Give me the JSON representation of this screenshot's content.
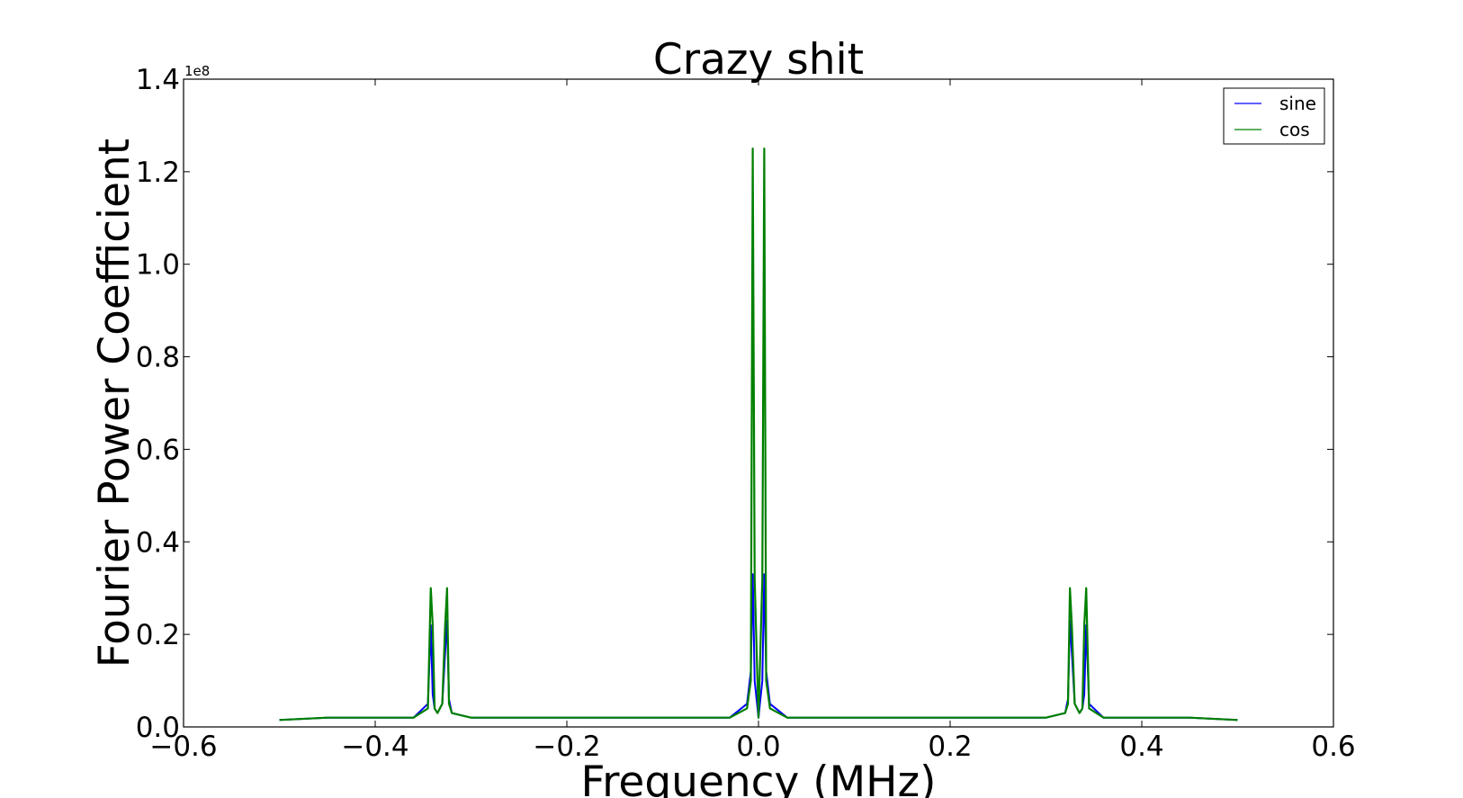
{
  "chart_data": {
    "type": "line",
    "title": "Crazy shit",
    "xlabel": "Frequency (MHz)",
    "ylabel": "Fourier Power Coefficient",
    "y_multiplier": "1e8",
    "xlim": [
      -0.6,
      0.6
    ],
    "ylim": [
      0,
      1.4
    ],
    "xticks": [
      -0.6,
      -0.4,
      -0.2,
      0.0,
      0.2,
      0.4,
      0.6
    ],
    "xtick_labels": [
      "−0.6",
      "−0.4",
      "−0.2",
      "0.0",
      "0.2",
      "0.4",
      "0.6"
    ],
    "yticks": [
      0.0,
      0.2,
      0.4,
      0.6,
      0.8,
      1.0,
      1.2,
      1.4
    ],
    "ytick_labels": [
      "0.0",
      "0.2",
      "0.4",
      "0.6",
      "0.8",
      "1.0",
      "1.2",
      "1.4"
    ],
    "grid": false,
    "legend_position": "top-right",
    "series": [
      {
        "name": "sine",
        "color": "#0000ff",
        "x": [
          -0.5,
          -0.45,
          -0.4,
          -0.36,
          -0.345,
          -0.342,
          -0.34,
          -0.338,
          -0.335,
          -0.33,
          -0.327,
          -0.325,
          -0.323,
          -0.32,
          -0.3,
          -0.2,
          -0.1,
          -0.03,
          -0.012,
          -0.008,
          -0.006,
          -0.004,
          0.0,
          0.004,
          0.006,
          0.008,
          0.012,
          0.03,
          0.1,
          0.2,
          0.3,
          0.32,
          0.323,
          0.325,
          0.327,
          0.33,
          0.335,
          0.338,
          0.34,
          0.342,
          0.345,
          0.36,
          0.4,
          0.45,
          0.5
        ],
        "y": [
          0.015,
          0.02,
          0.02,
          0.02,
          0.05,
          0.22,
          0.07,
          0.04,
          0.03,
          0.05,
          0.16,
          0.23,
          0.06,
          0.03,
          0.02,
          0.02,
          0.02,
          0.02,
          0.05,
          0.12,
          0.33,
          0.1,
          0.02,
          0.1,
          0.33,
          0.12,
          0.05,
          0.02,
          0.02,
          0.02,
          0.02,
          0.03,
          0.06,
          0.23,
          0.16,
          0.05,
          0.03,
          0.04,
          0.07,
          0.22,
          0.05,
          0.02,
          0.02,
          0.02,
          0.015
        ]
      },
      {
        "name": "cos",
        "color": "#008000",
        "x": [
          -0.5,
          -0.45,
          -0.4,
          -0.36,
          -0.345,
          -0.342,
          -0.34,
          -0.338,
          -0.335,
          -0.33,
          -0.327,
          -0.325,
          -0.323,
          -0.32,
          -0.3,
          -0.2,
          -0.1,
          -0.03,
          -0.012,
          -0.008,
          -0.006,
          -0.004,
          0.0,
          0.004,
          0.006,
          0.008,
          0.012,
          0.03,
          0.1,
          0.2,
          0.3,
          0.32,
          0.323,
          0.325,
          0.327,
          0.33,
          0.335,
          0.338,
          0.34,
          0.342,
          0.345,
          0.36,
          0.4,
          0.45,
          0.5
        ],
        "y": [
          0.015,
          0.02,
          0.02,
          0.02,
          0.04,
          0.3,
          0.22,
          0.04,
          0.03,
          0.05,
          0.22,
          0.3,
          0.05,
          0.03,
          0.02,
          0.02,
          0.02,
          0.02,
          0.04,
          0.1,
          1.25,
          0.32,
          0.02,
          0.32,
          1.25,
          0.1,
          0.04,
          0.02,
          0.02,
          0.02,
          0.02,
          0.03,
          0.05,
          0.3,
          0.22,
          0.05,
          0.03,
          0.04,
          0.22,
          0.3,
          0.04,
          0.02,
          0.02,
          0.02,
          0.015
        ]
      }
    ]
  }
}
